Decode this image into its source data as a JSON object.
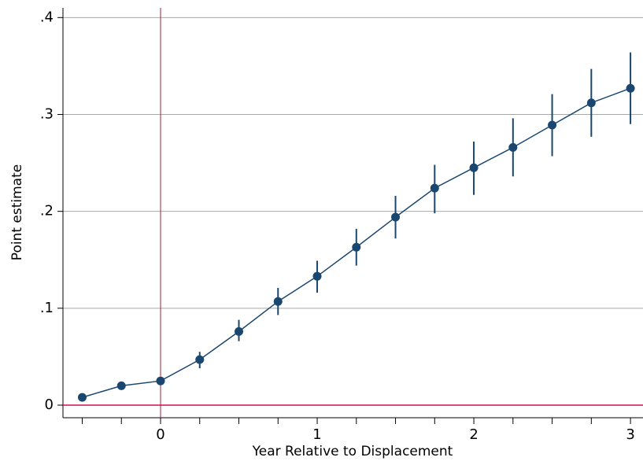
{
  "chart_data": {
    "type": "line",
    "xlabel": "Year Relative to Displacement",
    "ylabel": "Point estimate",
    "x": [
      -0.5,
      -0.25,
      0,
      0.25,
      0.5,
      0.75,
      1,
      1.25,
      1.5,
      1.75,
      2,
      2.25,
      2.5,
      2.75,
      3
    ],
    "series": [
      {
        "color": "#1a476f",
        "values": [
          0.008,
          0.02,
          0.025,
          0.047,
          0.076,
          0.107,
          0.133,
          0.163,
          0.194,
          0.224,
          0.245,
          0.266,
          0.289,
          0.312,
          0.327
        ],
        "lower": [
          0.006,
          0.017,
          0.022,
          0.038,
          0.066,
          0.093,
          0.116,
          0.144,
          0.172,
          0.198,
          0.217,
          0.236,
          0.257,
          0.277,
          0.29
        ],
        "upper": [
          0.01,
          0.022,
          0.028,
          0.055,
          0.088,
          0.121,
          0.149,
          0.182,
          0.216,
          0.248,
          0.272,
          0.296,
          0.321,
          0.347,
          0.364
        ]
      }
    ],
    "xlim": [
      -0.623,
      3.08
    ],
    "ylim": [
      -0.013,
      0.41
    ],
    "xticks": [
      0,
      1,
      2,
      3
    ],
    "xminor_ticks": [
      -0.5,
      -0.25,
      0.25,
      0.5,
      0.75,
      1.25,
      1.5,
      1.75,
      2.25,
      2.5,
      2.75
    ],
    "yticks": [
      0,
      {
        "value": 0.1,
        "label": ".1"
      },
      {
        "value": 0.2,
        "label": ".2"
      },
      {
        "value": 0.3,
        "label": ".3"
      },
      {
        "value": 0.4,
        "label": ".4"
      }
    ],
    "grid": true,
    "xline": {
      "value": 0,
      "color": "#a0203c"
    },
    "yline": {
      "value": 0,
      "color": "#d0104c"
    }
  }
}
